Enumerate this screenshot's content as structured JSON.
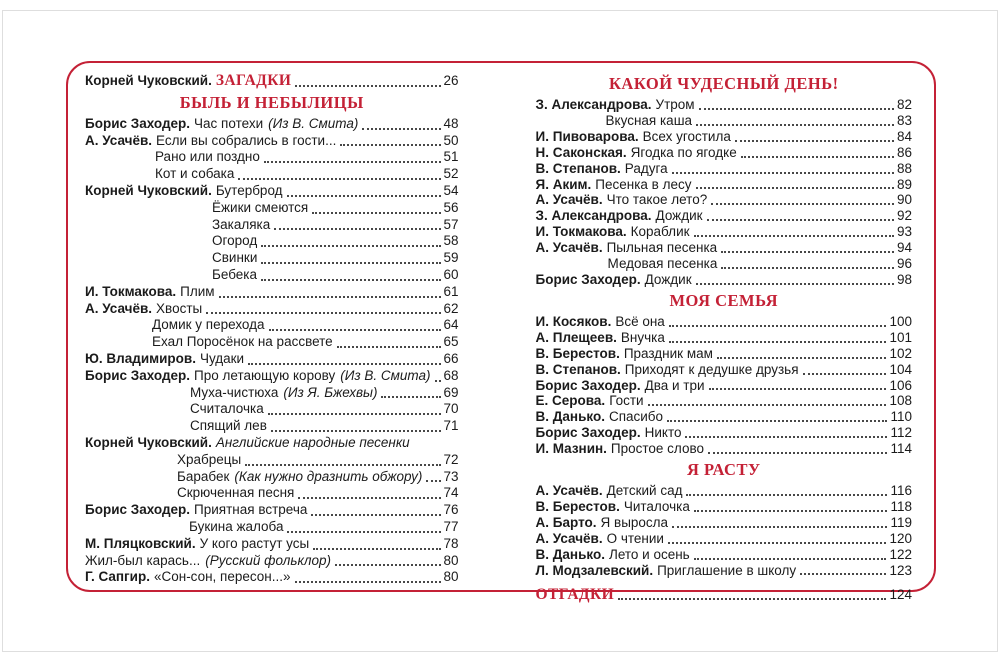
{
  "page": {
    "background_color": "#ffffff",
    "border_color": "#c42136",
    "accent_color": "#c42136",
    "text_color": "#1b1b1b"
  },
  "left_column": {
    "items": [
      {
        "type": "row",
        "author": "Корней Чуковский.",
        "title": "ЗАГАДКИ",
        "title_style": "accent",
        "page": "26"
      },
      {
        "type": "heading",
        "text": "БЫЛЬ И НЕБЫЛИЦЫ"
      },
      {
        "type": "row",
        "author": "Борис Заходер.",
        "title": "Час потехи",
        "note": "(Из В. Смита)",
        "page": "48"
      },
      {
        "type": "row",
        "author": "А. Усачёв.",
        "title": "Если вы собрались в гости...",
        "page": "50"
      },
      {
        "type": "row",
        "title": "Рано или поздно",
        "page": "51",
        "indent": 70
      },
      {
        "type": "row",
        "title": "Кот и собака",
        "page": "52",
        "indent": 70
      },
      {
        "type": "row",
        "author": "Корней Чуковский.",
        "title": "Бутерброд",
        "page": "54"
      },
      {
        "type": "row",
        "title": "Ёжики смеются",
        "page": "56",
        "indent": 127
      },
      {
        "type": "row",
        "title": "Закаляка",
        "page": "57",
        "indent": 127
      },
      {
        "type": "row",
        "title": "Огород",
        "page": "58",
        "indent": 127
      },
      {
        "type": "row",
        "title": "Свинки",
        "page": "59",
        "indent": 127
      },
      {
        "type": "row",
        "title": "Бебека",
        "page": "60",
        "indent": 127
      },
      {
        "type": "row",
        "author": "И. Токмакова.",
        "title": "Плим",
        "page": "61"
      },
      {
        "type": "row",
        "author": "А. Усачёв.",
        "title": "Хвосты",
        "page": "62"
      },
      {
        "type": "row",
        "title": "Домик у перехода",
        "page": "64",
        "indent": 67
      },
      {
        "type": "row",
        "title": "Ехал Поросёнок на рассвете",
        "page": "65",
        "indent": 67
      },
      {
        "type": "row",
        "author": "Ю. Владимиров.",
        "title": "Чудаки",
        "page": "66"
      },
      {
        "type": "row",
        "author": "Борис Заходер.",
        "title": "Про летающую корову",
        "note": "(Из В. Смита)",
        "page": "68"
      },
      {
        "type": "row",
        "title": "Муха-чистюха",
        "note": "(Из Я. Бжехвы)",
        "page": "69",
        "indent": 105
      },
      {
        "type": "row",
        "title": "Считалочка",
        "page": "70",
        "indent": 105
      },
      {
        "type": "row",
        "title": "Спящий лев",
        "page": "71",
        "indent": 105
      },
      {
        "type": "row",
        "author": "Корней Чуковский.",
        "title": "Английские народные песенки",
        "title_italic": true,
        "leader": false
      },
      {
        "type": "row",
        "title": "Храбрецы",
        "page": "72",
        "indent": 92
      },
      {
        "type": "row",
        "title": "Барабек",
        "note": "(Как нужно дразнить обжору)",
        "page": "73",
        "indent": 92
      },
      {
        "type": "row",
        "title": "Скрюченная песня",
        "page": "74",
        "indent": 92
      },
      {
        "type": "row",
        "author": "Борис Заходер.",
        "title": "Приятная встреча",
        "page": "76"
      },
      {
        "type": "row",
        "title": "Букина жалоба",
        "page": "77",
        "indent": 104
      },
      {
        "type": "row",
        "author": "М. Пляцковский.",
        "title": "У кого растут усы",
        "page": "78"
      },
      {
        "type": "row",
        "title": "Жил-был карась...",
        "note": "(Русский фольклор)",
        "page": "80"
      },
      {
        "type": "row",
        "author": "Г. Сапгир.",
        "title": "«Сон-сон, пересон...»",
        "page": "80"
      }
    ]
  },
  "right_column": {
    "items": [
      {
        "type": "heading",
        "text": "КАКОЙ ЧУДЕСНЫЙ ДЕНЬ!"
      },
      {
        "type": "row",
        "author": "З. Александрова.",
        "title": "Утром",
        "page": "82"
      },
      {
        "type": "row",
        "title": "Вкусная каша",
        "page": "83",
        "indent": 70
      },
      {
        "type": "row",
        "author": "И. Пивоварова.",
        "title": "Всех угостила",
        "page": "84"
      },
      {
        "type": "row",
        "author": "Н. Саконская.",
        "title": "Ягодка по ягодке",
        "page": "86"
      },
      {
        "type": "row",
        "author": "В. Степанов.",
        "title": "Радуга",
        "page": "88"
      },
      {
        "type": "row",
        "author": "Я. Аким.",
        "title": "Песенка в лесу",
        "page": "89"
      },
      {
        "type": "row",
        "author": "А. Усачёв.",
        "title": "Что такое лето?",
        "page": "90"
      },
      {
        "type": "row",
        "author": "З. Александрова.",
        "title": "Дождик",
        "page": "92"
      },
      {
        "type": "row",
        "author": "И. Токмакова.",
        "title": "Кораблик",
        "page": "93"
      },
      {
        "type": "row",
        "author": "А. Усачёв.",
        "title": "Пыльная песенка",
        "page": "94"
      },
      {
        "type": "row",
        "title": "Медовая песенка",
        "page": "96",
        "indent": 72
      },
      {
        "type": "row",
        "author": "Борис Заходер.",
        "title": "Дождик",
        "page": "98"
      },
      {
        "type": "heading",
        "text": "МОЯ СЕМЬЯ"
      },
      {
        "type": "row",
        "author": "И. Косяков.",
        "title": "Всё она",
        "page": "100"
      },
      {
        "type": "row",
        "author": "А. Плещеев.",
        "title": "Внучка",
        "page": "101"
      },
      {
        "type": "row",
        "author": "В. Берестов.",
        "title": "Праздник мам",
        "page": "102"
      },
      {
        "type": "row",
        "author": "В. Степанов.",
        "title": "Приходят к дедушке друзья",
        "page": "104"
      },
      {
        "type": "row",
        "author": "Борис Заходер.",
        "title": "Два и три",
        "page": "106"
      },
      {
        "type": "row",
        "author": "Е. Серова.",
        "title": "Гости",
        "page": "108"
      },
      {
        "type": "row",
        "author": "В. Данько.",
        "title": "Спасибо",
        "page": "110"
      },
      {
        "type": "row",
        "author": "Борис Заходер.",
        "title": "Никто",
        "page": "112"
      },
      {
        "type": "row",
        "author": "И. Мазнин.",
        "title": "Простое слово",
        "page": "114"
      },
      {
        "type": "heading",
        "text": "Я РАСТУ"
      },
      {
        "type": "row",
        "author": "А. Усачёв.",
        "title": "Детский сад",
        "page": "116"
      },
      {
        "type": "row",
        "author": "В. Берестов.",
        "title": "Читалочка",
        "page": "118"
      },
      {
        "type": "row",
        "author": "А. Барто.",
        "title": "Я выросла",
        "page": "119"
      },
      {
        "type": "row",
        "author": "А. Усачёв.",
        "title": "О чтении",
        "page": "120"
      },
      {
        "type": "row",
        "author": "В. Данько.",
        "title": "Лето и осень",
        "page": "122"
      },
      {
        "type": "row",
        "author": "Л. Модзалевский.",
        "title": "Приглашение в школу",
        "page": "123"
      },
      {
        "type": "row",
        "title": "ОТГАДКИ",
        "title_style": "accent",
        "page": "124",
        "gap_before": true
      }
    ]
  }
}
